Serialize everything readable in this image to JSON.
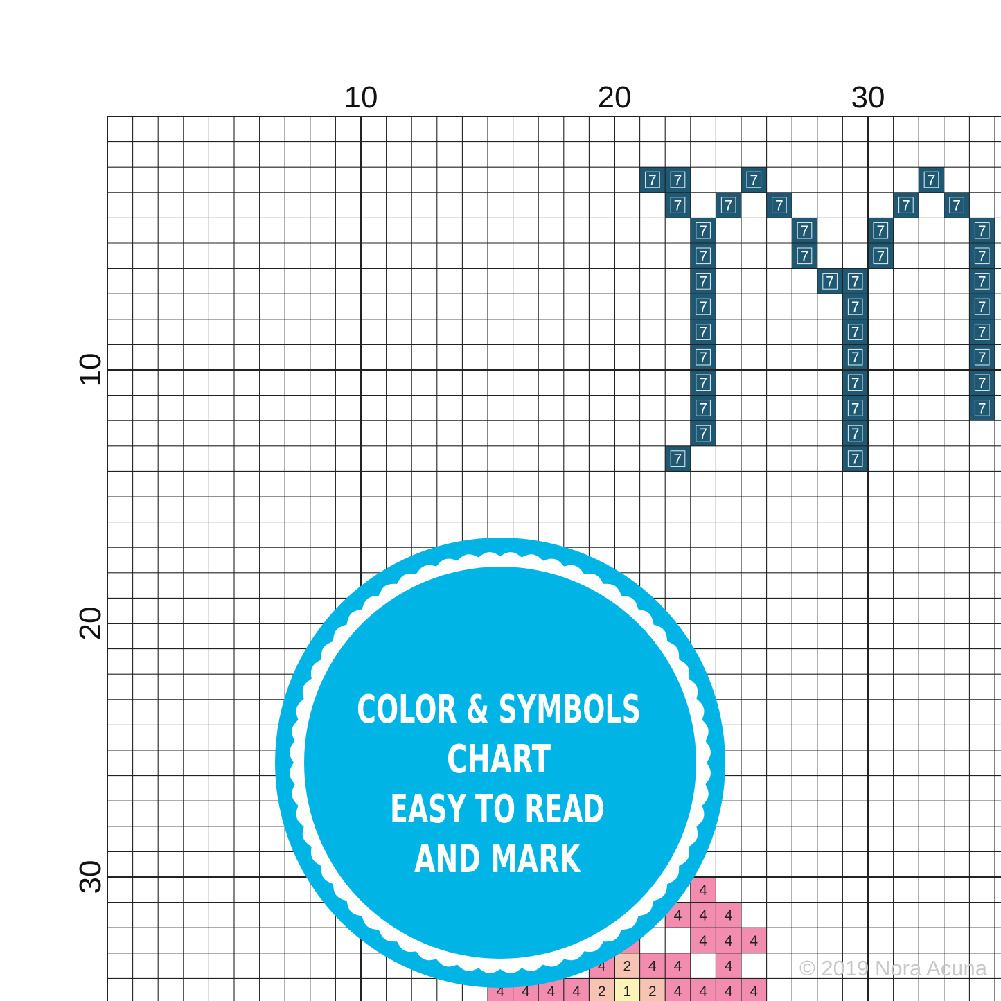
{
  "axes": {
    "x_ticks": [
      {
        "value": 10,
        "label": "10"
      },
      {
        "value": 20,
        "label": "20"
      },
      {
        "value": 30,
        "label": "30"
      }
    ],
    "y_ticks": [
      {
        "value": 10,
        "label": "10"
      },
      {
        "value": 20,
        "label": "20"
      },
      {
        "value": 30,
        "label": "30"
      }
    ]
  },
  "palette": {
    "7": {
      "fill": "#1f5873",
      "text": "#ffffff"
    },
    "4": {
      "fill": "#f28db0",
      "text": "#222222"
    },
    "2": {
      "fill": "#f7c3b3",
      "text": "#222222"
    },
    "1": {
      "fill": "#fbf3b8",
      "text": "#222222"
    },
    "grid_line": "#222222",
    "badge": "#00b5e5",
    "badge_text": "#ffffff"
  },
  "stitches": [
    {
      "row": 3,
      "col": 22,
      "symbol": "7"
    },
    {
      "row": 3,
      "col": 23,
      "symbol": "7"
    },
    {
      "row": 3,
      "col": 26,
      "symbol": "7"
    },
    {
      "row": 3,
      "col": 33,
      "symbol": "7"
    },
    {
      "row": 4,
      "col": 23,
      "symbol": "7"
    },
    {
      "row": 4,
      "col": 25,
      "symbol": "7"
    },
    {
      "row": 4,
      "col": 27,
      "symbol": "7"
    },
    {
      "row": 4,
      "col": 32,
      "symbol": "7"
    },
    {
      "row": 4,
      "col": 34,
      "symbol": "7"
    },
    {
      "row": 5,
      "col": 24,
      "symbol": "7"
    },
    {
      "row": 5,
      "col": 28,
      "symbol": "7"
    },
    {
      "row": 5,
      "col": 31,
      "symbol": "7"
    },
    {
      "row": 5,
      "col": 35,
      "symbol": "7"
    },
    {
      "row": 6,
      "col": 24,
      "symbol": "7"
    },
    {
      "row": 6,
      "col": 28,
      "symbol": "7"
    },
    {
      "row": 6,
      "col": 31,
      "symbol": "7"
    },
    {
      "row": 6,
      "col": 35,
      "symbol": "7"
    },
    {
      "row": 7,
      "col": 24,
      "symbol": "7"
    },
    {
      "row": 7,
      "col": 29,
      "symbol": "7"
    },
    {
      "row": 7,
      "col": 30,
      "symbol": "7"
    },
    {
      "row": 7,
      "col": 35,
      "symbol": "7"
    },
    {
      "row": 8,
      "col": 24,
      "symbol": "7"
    },
    {
      "row": 8,
      "col": 30,
      "symbol": "7"
    },
    {
      "row": 8,
      "col": 35,
      "symbol": "7"
    },
    {
      "row": 9,
      "col": 24,
      "symbol": "7"
    },
    {
      "row": 9,
      "col": 30,
      "symbol": "7"
    },
    {
      "row": 9,
      "col": 35,
      "symbol": "7"
    },
    {
      "row": 10,
      "col": 24,
      "symbol": "7"
    },
    {
      "row": 10,
      "col": 30,
      "symbol": "7"
    },
    {
      "row": 10,
      "col": 35,
      "symbol": "7"
    },
    {
      "row": 11,
      "col": 24,
      "symbol": "7"
    },
    {
      "row": 11,
      "col": 30,
      "symbol": "7"
    },
    {
      "row": 11,
      "col": 35,
      "symbol": "7"
    },
    {
      "row": 12,
      "col": 24,
      "symbol": "7"
    },
    {
      "row": 12,
      "col": 30,
      "symbol": "7"
    },
    {
      "row": 12,
      "col": 35,
      "symbol": "7"
    },
    {
      "row": 13,
      "col": 24,
      "symbol": "7"
    },
    {
      "row": 13,
      "col": 30,
      "symbol": "7"
    },
    {
      "row": 14,
      "col": 23,
      "symbol": "7"
    },
    {
      "row": 14,
      "col": 30,
      "symbol": "7"
    },
    {
      "row": 31,
      "col": 24,
      "symbol": "4"
    },
    {
      "row": 32,
      "col": 23,
      "symbol": "4"
    },
    {
      "row": 32,
      "col": 24,
      "symbol": "4"
    },
    {
      "row": 32,
      "col": 25,
      "symbol": "4"
    },
    {
      "row": 33,
      "col": 21,
      "symbol": "4"
    },
    {
      "row": 33,
      "col": 24,
      "symbol": "4"
    },
    {
      "row": 33,
      "col": 25,
      "symbol": "4"
    },
    {
      "row": 33,
      "col": 26,
      "symbol": "4"
    },
    {
      "row": 34,
      "col": 20,
      "symbol": "4"
    },
    {
      "row": 34,
      "col": 21,
      "symbol": "2"
    },
    {
      "row": 34,
      "col": 22,
      "symbol": "4"
    },
    {
      "row": 34,
      "col": 23,
      "symbol": "4"
    },
    {
      "row": 34,
      "col": 25,
      "symbol": "4"
    },
    {
      "row": 35,
      "col": 16,
      "symbol": "4"
    },
    {
      "row": 35,
      "col": 17,
      "symbol": "4"
    },
    {
      "row": 35,
      "col": 18,
      "symbol": "4"
    },
    {
      "row": 35,
      "col": 19,
      "symbol": "4"
    },
    {
      "row": 35,
      "col": 20,
      "symbol": "2"
    },
    {
      "row": 35,
      "col": 21,
      "symbol": "1"
    },
    {
      "row": 35,
      "col": 22,
      "symbol": "2"
    },
    {
      "row": 35,
      "col": 23,
      "symbol": "4"
    },
    {
      "row": 35,
      "col": 24,
      "symbol": "4"
    },
    {
      "row": 35,
      "col": 25,
      "symbol": "4"
    },
    {
      "row": 35,
      "col": 26,
      "symbol": "4"
    }
  ],
  "badge": {
    "lines": [
      "COLOR & SYMBOLS",
      "CHART",
      "EASY TO READ",
      "AND MARK"
    ]
  },
  "watermark": "© 2019 Nora Acuna"
}
